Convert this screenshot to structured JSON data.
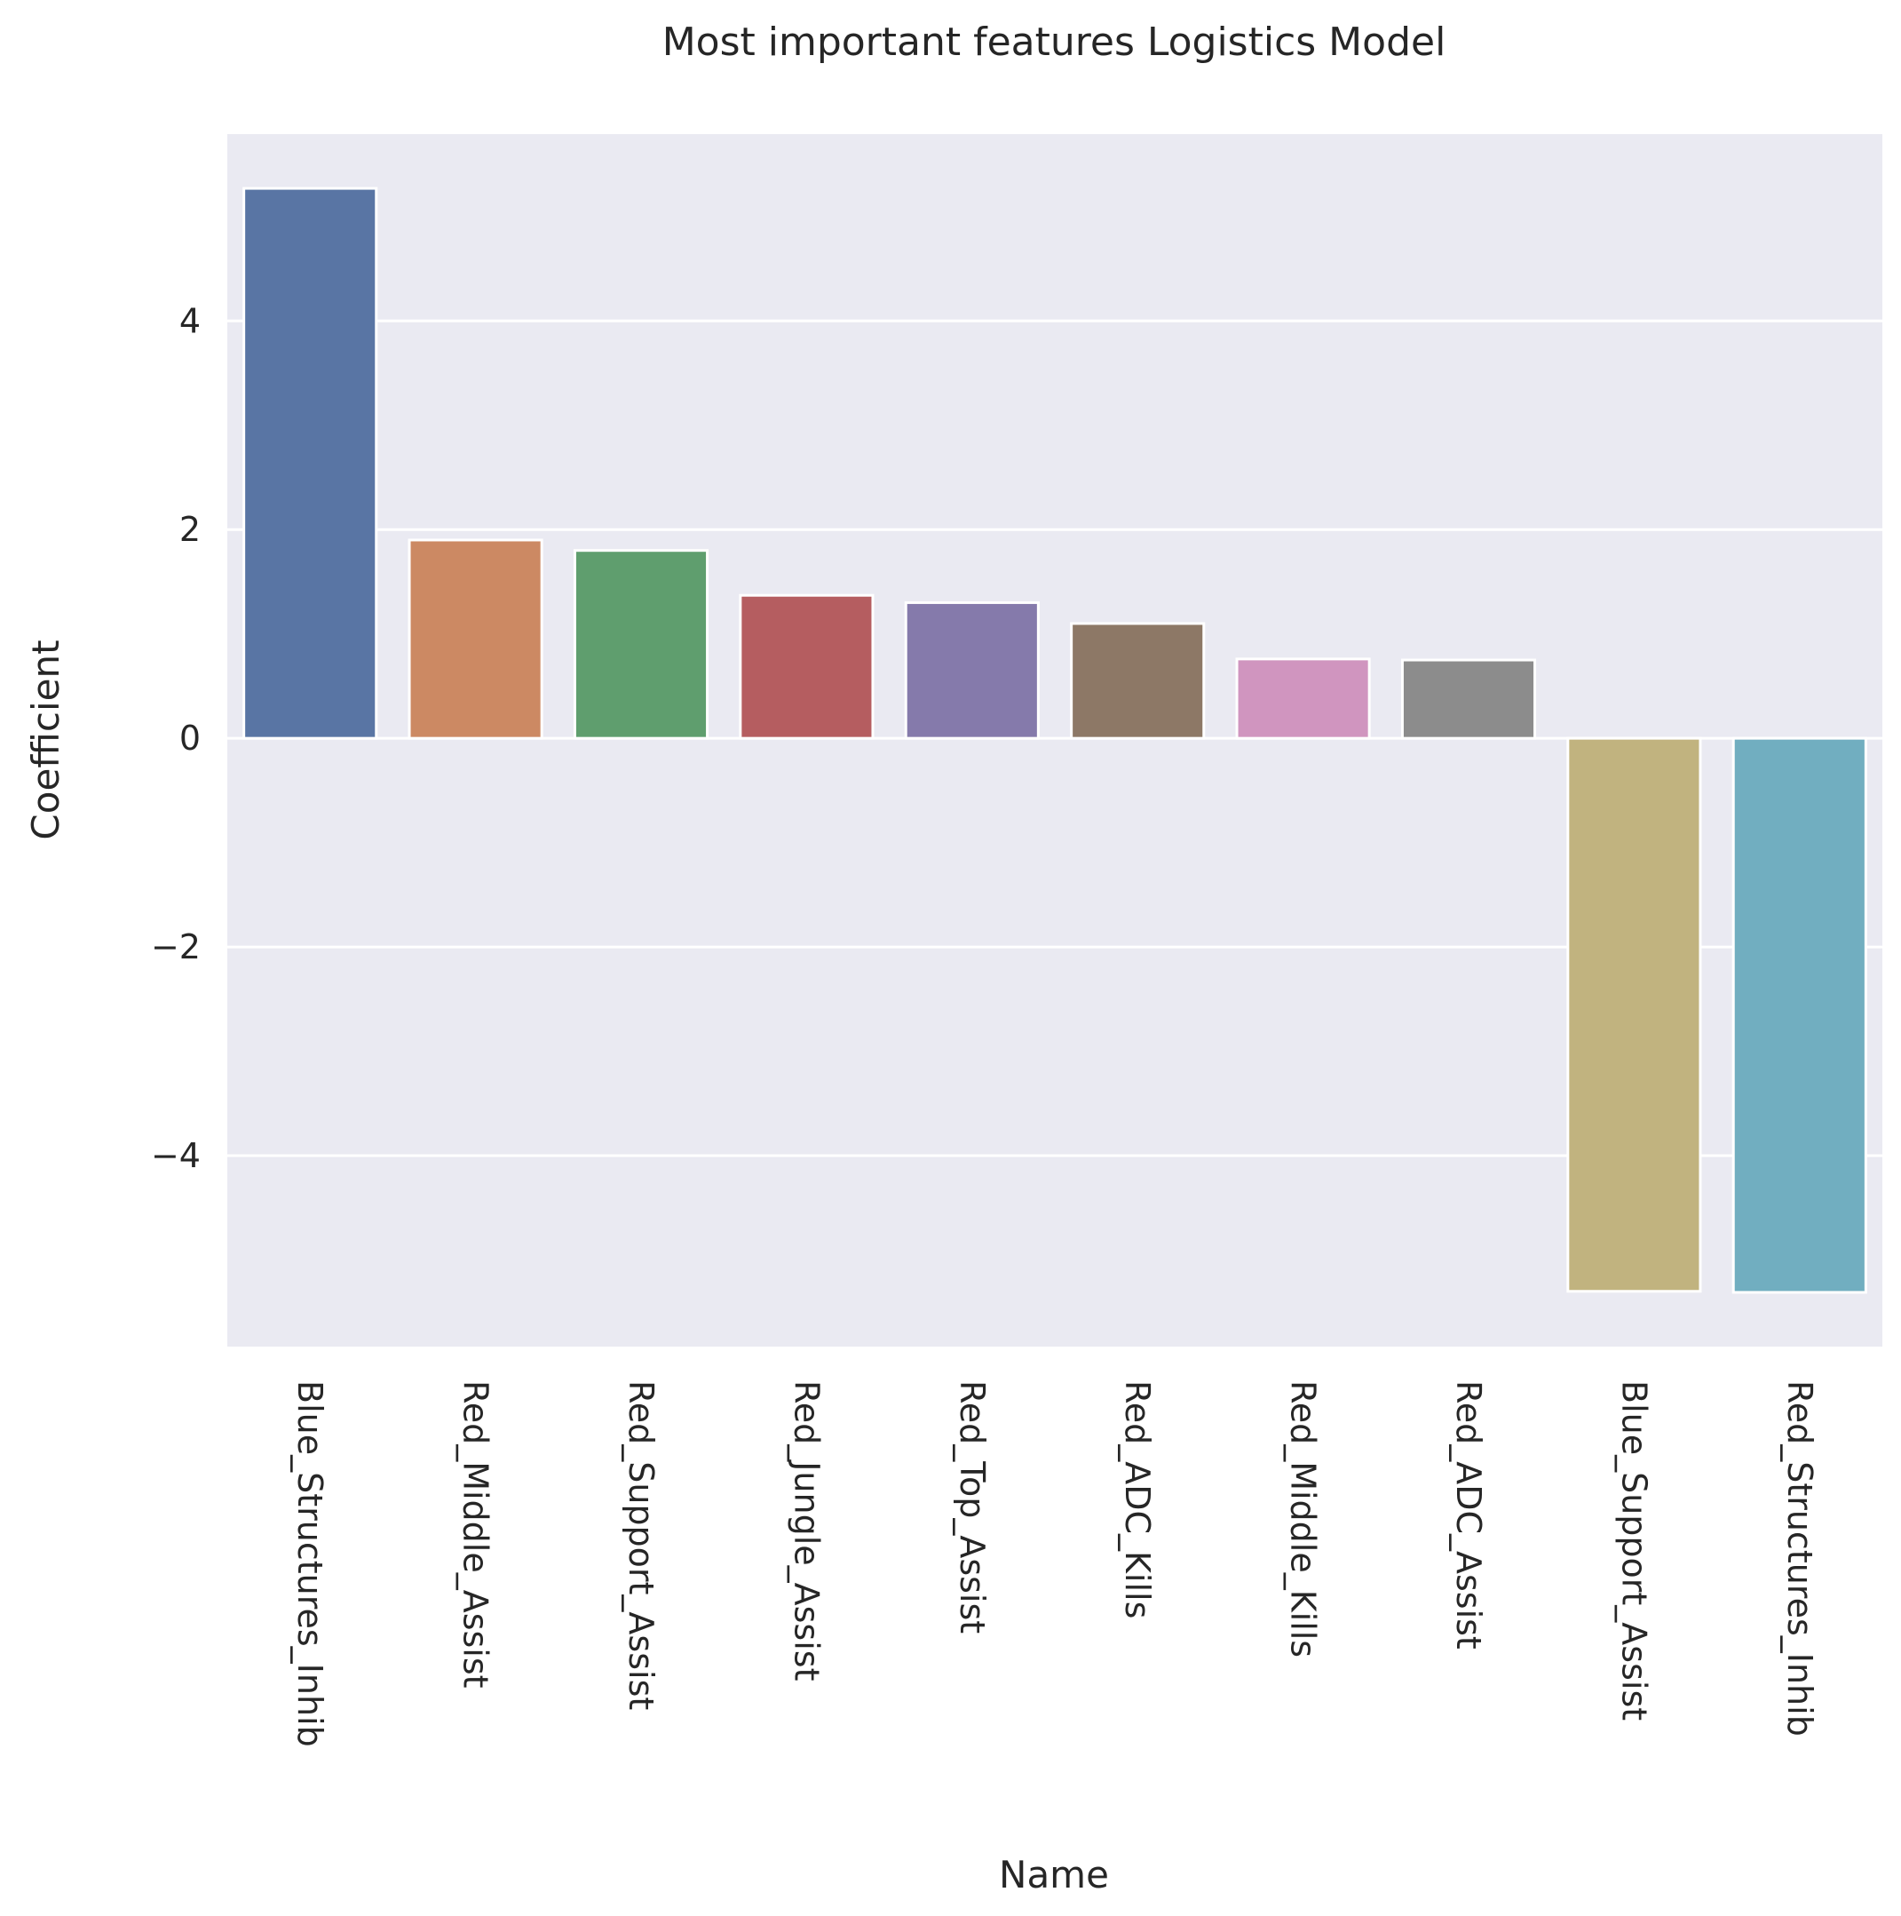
{
  "chart_data": {
    "type": "bar",
    "title": "Most important features Logistics Model",
    "xlabel": "Name",
    "ylabel": "Coefficient",
    "categories": [
      "Blue_Structures_Inhib",
      "Red_Middle_Assist",
      "Red_Support_Assist",
      "Red_Jungle_Assist",
      "Red_Top_Assist",
      "Red_ADC_Kills",
      "Red_Middle_Kills",
      "Red_ADC_Assist",
      "Blue_Support_Assist",
      "Red_Structures_Inhib"
    ],
    "values": [
      5.27,
      1.9,
      1.8,
      1.37,
      1.3,
      1.1,
      0.76,
      0.75,
      -5.3,
      -5.31
    ],
    "colors": [
      "#5975a4",
      "#cc8963",
      "#5f9e6e",
      "#b55d60",
      "#857aab",
      "#8d7866",
      "#d095bf",
      "#8c8c8c",
      "#c1b37f",
      "#71aec0"
    ],
    "ylim": [
      -5.83,
      5.79
    ],
    "yticks": [
      -4,
      -2,
      0,
      2,
      4
    ],
    "grid": true,
    "background": "#eaeaf2",
    "grid_color": "#ffffff"
  }
}
